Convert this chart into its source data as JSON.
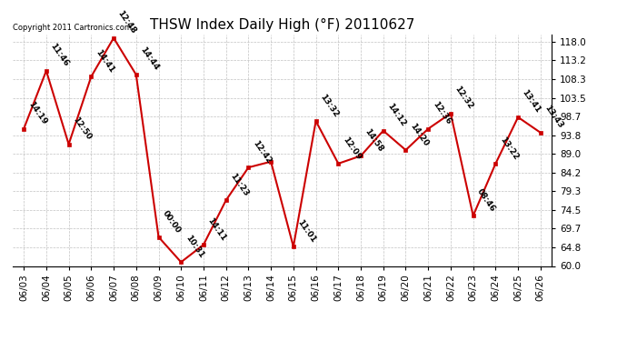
{
  "title": "THSW Index Daily High (°F) 20110627",
  "copyright": "Copyright 2011 Cartronics.com",
  "x_labels": [
    "06/03",
    "06/04",
    "06/05",
    "06/06",
    "06/07",
    "06/08",
    "06/09",
    "06/10",
    "06/11",
    "06/12",
    "06/13",
    "06/14",
    "06/15",
    "06/16",
    "06/17",
    "06/18",
    "06/19",
    "06/20",
    "06/21",
    "06/22",
    "06/23",
    "06/24",
    "06/25",
    "06/26"
  ],
  "y_values": [
    95.5,
    110.5,
    91.5,
    109.0,
    119.0,
    109.5,
    67.5,
    61.0,
    65.5,
    77.0,
    85.5,
    87.0,
    65.0,
    97.5,
    86.5,
    88.5,
    95.0,
    90.0,
    95.5,
    99.5,
    73.0,
    86.5,
    98.5,
    94.5
  ],
  "point_labels": [
    "14:19",
    "11:46",
    "12:50",
    "14:41",
    "12:48",
    "14:44",
    "00:00",
    "10:31",
    "14:11",
    "11:23",
    "12:42",
    "",
    "11:01",
    "13:32",
    "12:09",
    "14:58",
    "14:12",
    "14:20",
    "12:36",
    "12:32",
    "08:46",
    "13:22",
    "13:41",
    "13:43"
  ],
  "y_ticks": [
    60.0,
    64.8,
    69.7,
    74.5,
    79.3,
    84.2,
    89.0,
    93.8,
    98.7,
    103.5,
    108.3,
    113.2,
    118.0
  ],
  "ylim": [
    60.0,
    120.0
  ],
  "line_color": "#cc0000",
  "marker_color": "#cc0000",
  "bg_color": "#ffffff",
  "grid_color": "#bbbbbb",
  "title_fontsize": 11,
  "annot_fontsize": 6.5,
  "tick_fontsize": 7.5
}
